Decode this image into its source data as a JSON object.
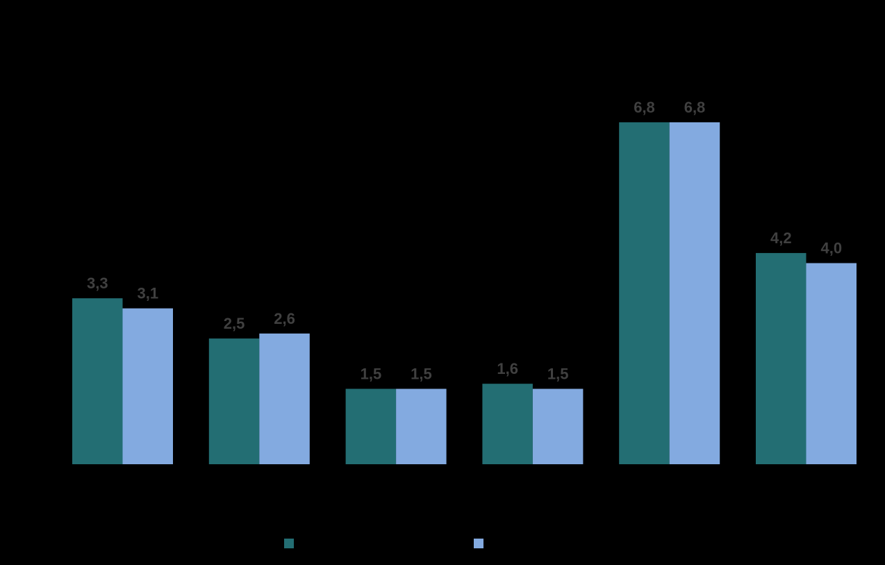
{
  "chart_data": {
    "type": "bar",
    "title": "",
    "xlabel": "",
    "ylabel": "",
    "categories": [
      "",
      "",
      "",
      "",
      "",
      ""
    ],
    "series": [
      {
        "color": "#236e73",
        "values": [
          3.3,
          2.5,
          1.5,
          1.6,
          6.8,
          4.2
        ],
        "labels": [
          "3,3",
          "2,5",
          "1,5",
          "1,6",
          "6,8",
          "4,2"
        ]
      },
      {
        "color": "#83aae0",
        "values": [
          3.1,
          2.6,
          1.5,
          1.5,
          6.8,
          4.0
        ],
        "labels": [
          "3,1",
          "2,6",
          "1,5",
          "1,5",
          "6,8",
          "4,0"
        ]
      }
    ],
    "ylim": [
      0,
      8
    ],
    "grid": false,
    "legend_position": "bottom",
    "background": "#000000"
  }
}
